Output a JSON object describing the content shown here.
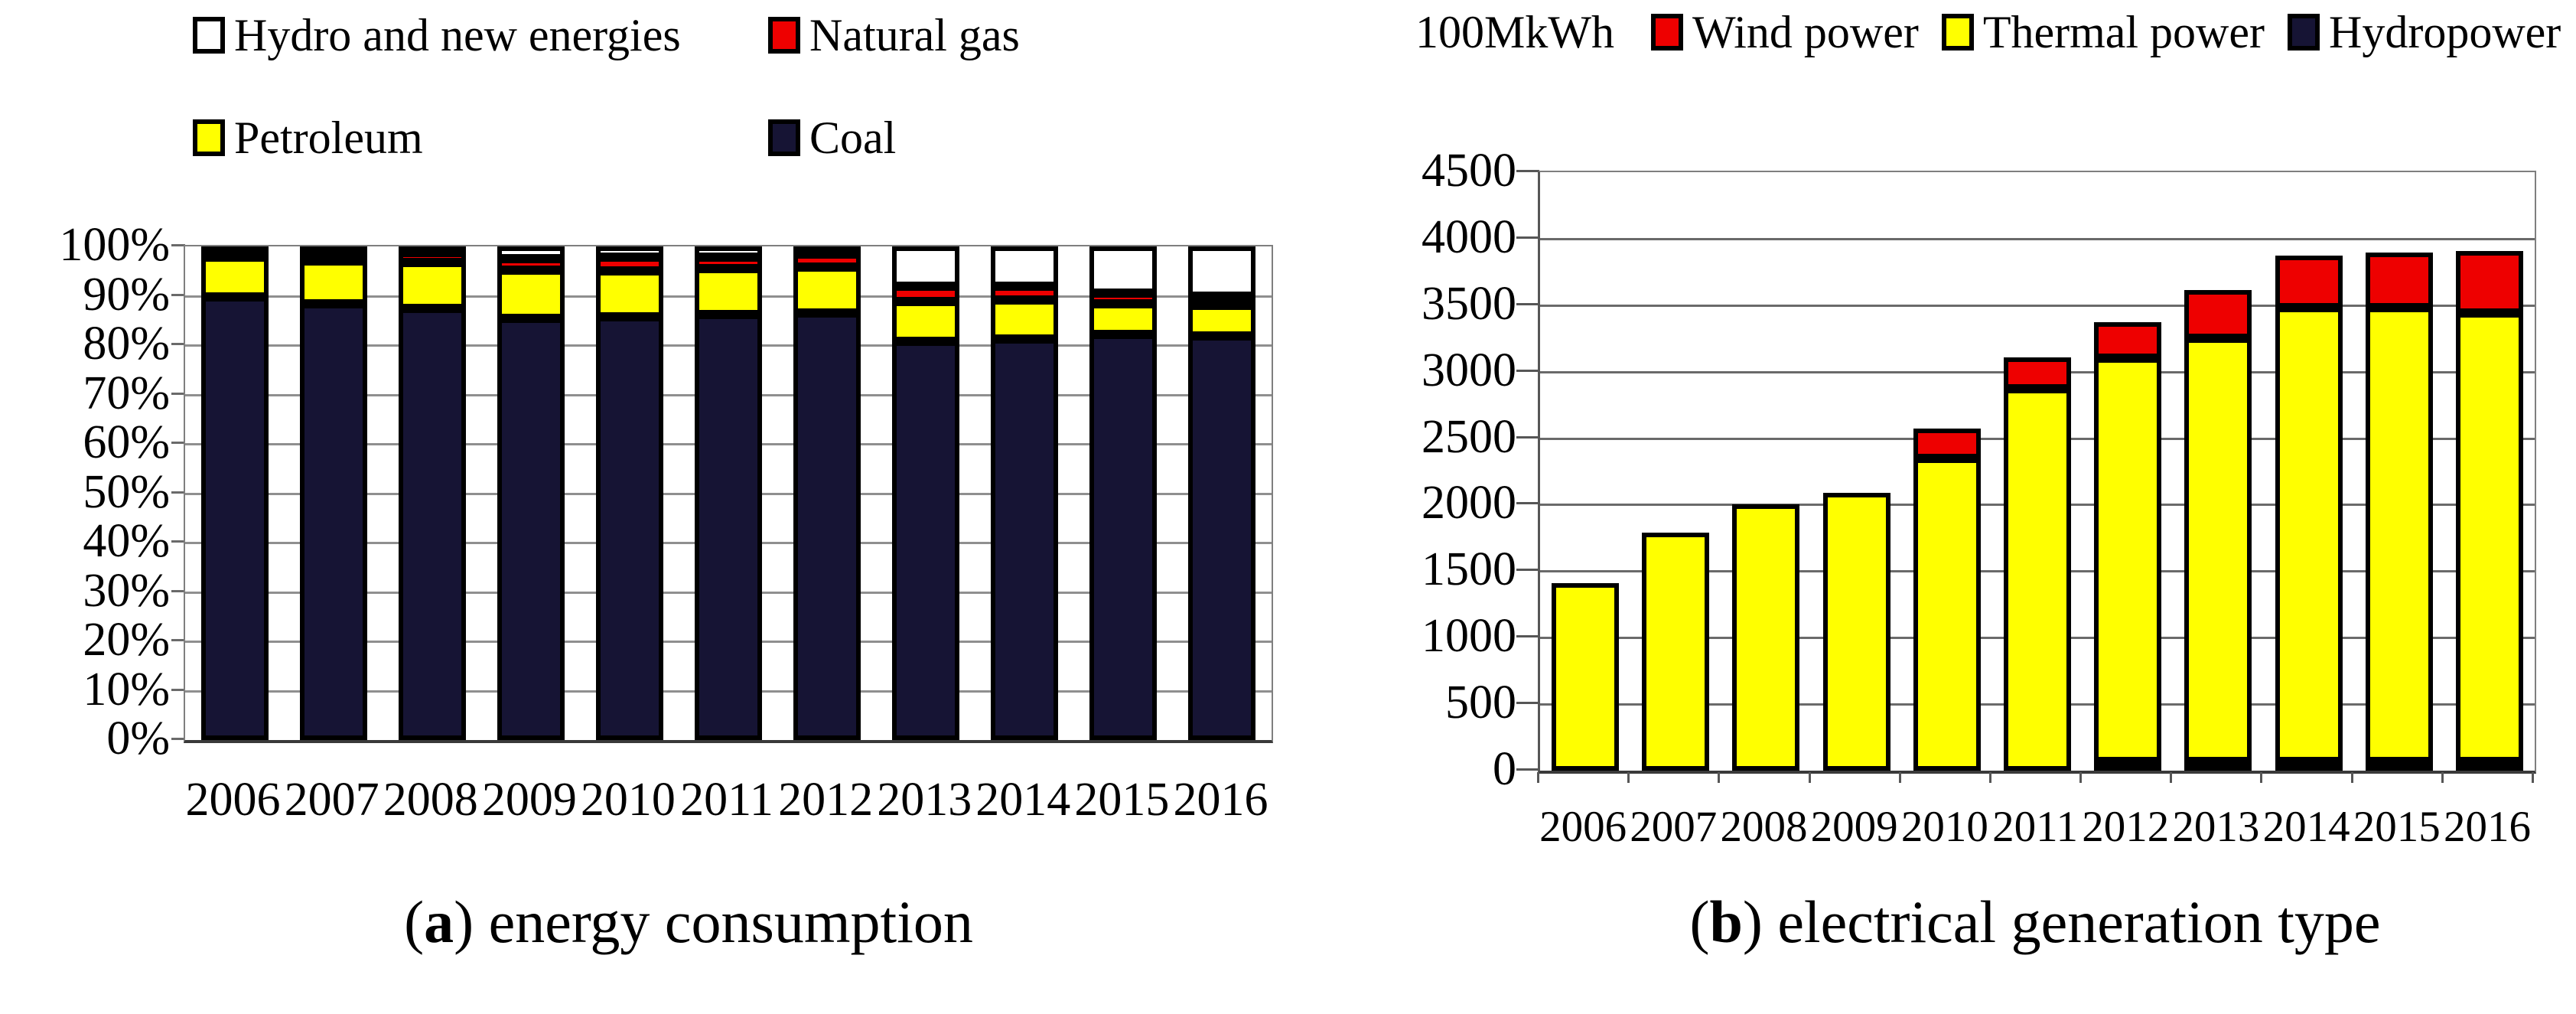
{
  "figure": {
    "panel_a_caption": "(a) energy consumption",
    "panel_b_caption": "(b) electrical generation type"
  },
  "chart_data": [
    {
      "id": "a",
      "type": "bar",
      "stacked": true,
      "unit": "percent",
      "caption": {
        "open": "(",
        "bold": "a",
        "close": ")",
        "text": " energy consumption"
      },
      "categories": [
        "2006",
        "2007",
        "2008",
        "2009",
        "2010",
        "2011",
        "2012",
        "2013",
        "2014",
        "2015",
        "2016"
      ],
      "series": [
        {
          "name": "Coal",
          "color": "#161434",
          "values": [
            89.7,
            88.3,
            87.5,
            85.4,
            85.7,
            86.2,
            86.5,
            80.8,
            81.3,
            82.1,
            81.8
          ]
        },
        {
          "name": "Petroleum",
          "color": "#ffff00",
          "values": [
            8.2,
            8.8,
            9.3,
            9.8,
            9.3,
            9.3,
            9.3,
            8.0,
            7.8,
            6.2,
            6.2
          ]
        },
        {
          "name": "Natural gas",
          "color": "#ee0000",
          "values": [
            1.3,
            1.8,
            1.9,
            2.4,
            2.8,
            2.3,
            2.6,
            3.1,
            2.8,
            2.3,
            1.8
          ]
        },
        {
          "name": "Hydro and new energies",
          "color": "#ffffff",
          "values": [
            0.8,
            1.1,
            1.3,
            2.4,
            2.2,
            2.2,
            1.6,
            8.1,
            8.1,
            9.4,
            10.2
          ]
        }
      ],
      "legend_order": [
        "Hydro and new energies",
        "Natural gas",
        "Petroleum",
        "Coal"
      ],
      "legend_position": "top",
      "grid": true,
      "y_axis": {
        "min": 0,
        "max": 100,
        "step": 10,
        "tick_labels": [
          "100%",
          "90%",
          "80%",
          "70%",
          "60%",
          "50%",
          "40%",
          "30%",
          "20%",
          "10%",
          "0%"
        ]
      }
    },
    {
      "id": "b",
      "type": "bar",
      "stacked": true,
      "unit_label": "100MkWh",
      "caption": {
        "open": "(",
        "bold": "b",
        "close": ")",
        "text": " electrical generation type"
      },
      "categories": [
        "2006",
        "2007",
        "2008",
        "2009",
        "2010",
        "2011",
        "2012",
        "2013",
        "2014",
        "2015",
        "2016"
      ],
      "series": [
        {
          "name": "Hydropower",
          "color": "#161434",
          "values": [
            0,
            0,
            0,
            0,
            0,
            0,
            25,
            15,
            40,
            40,
            30
          ]
        },
        {
          "name": "Thermal power",
          "color": "#ffff00",
          "values": [
            1410,
            1790,
            2000,
            2090,
            2350,
            2870,
            3030,
            3180,
            3410,
            3410,
            3370
          ]
        },
        {
          "name": "Wind power",
          "color": "#ee0000",
          "values": [
            0,
            0,
            0,
            0,
            220,
            240,
            275,
            365,
            395,
            415,
            470
          ]
        }
      ],
      "totals": [
        1410,
        1790,
        2000,
        2090,
        2570,
        3110,
        3330,
        3560,
        3845,
        3865,
        3870
      ],
      "legend_order": [
        "Wind power",
        "Thermal power",
        "Hydropower"
      ],
      "legend_position": "top",
      "grid": true,
      "y_axis": {
        "min": 0,
        "max": 4500,
        "step": 500,
        "tick_labels": [
          "4500",
          "4000",
          "3500",
          "3000",
          "2500",
          "2000",
          "1500",
          "1000",
          "500",
          "0"
        ]
      }
    }
  ]
}
